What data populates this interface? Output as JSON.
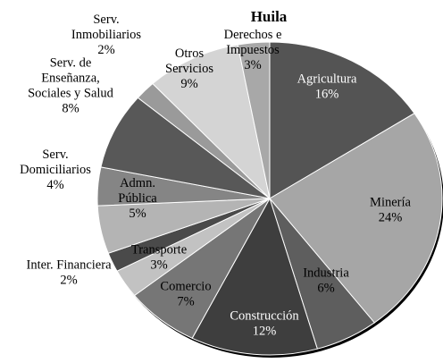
{
  "chart_data": {
    "type": "pie",
    "title": "Huila",
    "start_angle_deg": 0,
    "direction": "clockwise",
    "slices": [
      {
        "label": "Agricultura",
        "pct_label": "16%",
        "value": 16,
        "color": "#545454",
        "text_color": "#ffffff"
      },
      {
        "label": "Minería",
        "pct_label": "24%",
        "value": 24,
        "color": "#a6a6a6",
        "text_color": "#000000"
      },
      {
        "label": "Industria",
        "pct_label": "6%",
        "value": 6,
        "color": "#5e5e5e",
        "text_color": "#000000"
      },
      {
        "label": "Construcción",
        "pct_label": "12%",
        "value": 12,
        "color": "#3e3e3e",
        "text_color": "#ffffff"
      },
      {
        "label": "Comercio",
        "pct_label": "7%",
        "value": 7,
        "color": "#767676",
        "text_color": "#000000"
      },
      {
        "label": "Transporte",
        "pct_label": "3%",
        "value": 3,
        "color": "#c2c2c2",
        "text_color": "#000000"
      },
      {
        "label": "Inter. Financiera",
        "pct_label": "2%",
        "value": 2,
        "color": "#4a4a4a",
        "text_color": "#000000"
      },
      {
        "label": "Admn. Pública",
        "pct_label": "5%",
        "value": 5,
        "color": "#b4b4b4",
        "text_color": "#000000"
      },
      {
        "label": "Serv. Domiciliarios",
        "pct_label": "4%",
        "value": 4,
        "color": "#858585",
        "text_color": "#000000"
      },
      {
        "label": "Serv. de Enseñanza, Sociales y Salud",
        "pct_label": "8%",
        "value": 8,
        "color": "#585858",
        "text_color": "#000000"
      },
      {
        "label": "Serv. Inmobiliarios",
        "pct_label": "2%",
        "value": 2,
        "color": "#9a9a9a",
        "text_color": "#000000"
      },
      {
        "label": "Otros Servicios",
        "pct_label": "9%",
        "value": 9,
        "color": "#d4d4d4",
        "text_color": "#000000"
      },
      {
        "label": "Derechos e Impuestos",
        "pct_label": "3%",
        "value": 3,
        "color": "#a8a8a8",
        "text_color": "#000000"
      }
    ],
    "label_lines": [
      [
        "Agricultura",
        "16%"
      ],
      [
        "Minería",
        "24%"
      ],
      [
        "Industria",
        "6%"
      ],
      [
        "Construcción",
        "12%"
      ],
      [
        "Comercio",
        "7%"
      ],
      [
        "Transporte",
        "3%"
      ],
      [
        "Inter. Financiera",
        "2%"
      ],
      [
        "Admn.",
        "Pública",
        "5%"
      ],
      [
        "Serv.",
        "Domiciliarios",
        "4%"
      ],
      [
        "Serv. de",
        "Enseñanza,",
        "Sociales y Salud",
        "8%"
      ],
      [
        "Serv.",
        "Inmobiliarios",
        "2%"
      ],
      [
        "Otros",
        "Servicios",
        "9%"
      ],
      [
        "Derechos e",
        "Impuestos",
        "3%"
      ]
    ]
  }
}
